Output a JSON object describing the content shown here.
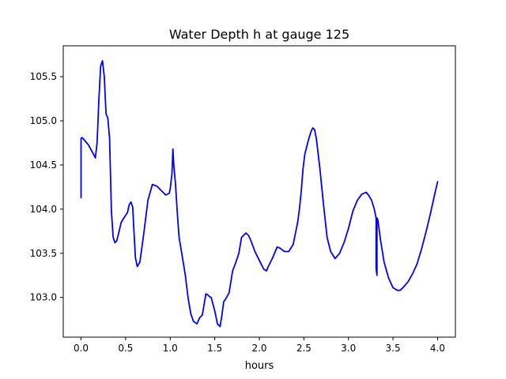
{
  "chart_data": {
    "type": "line",
    "title": "Water Depth h at gauge 125",
    "xlabel": "hours",
    "ylabel": "",
    "xlim": [
      -0.2,
      4.2
    ],
    "ylim": [
      102.55,
      105.85
    ],
    "grid": false,
    "xticks": [
      0.0,
      0.5,
      1.0,
      1.5,
      2.0,
      2.5,
      3.0,
      3.5,
      4.0
    ],
    "xtick_labels": [
      "0.0",
      "0.5",
      "1.0",
      "1.5",
      "2.0",
      "2.5",
      "3.0",
      "3.5",
      "4.0"
    ],
    "yticks": [
      103.0,
      103.5,
      104.0,
      104.5,
      105.0,
      105.5
    ],
    "ytick_labels": [
      "103.0",
      "103.5",
      "104.0",
      "104.5",
      "105.0",
      "105.5"
    ],
    "series": [
      {
        "color": "#0000ff",
        "x": [
          0.0,
          0.0,
          0.0,
          0.0,
          0.01,
          0.03,
          0.08,
          0.13,
          0.16,
          0.18,
          0.2,
          0.22,
          0.24,
          0.26,
          0.28,
          0.3,
          0.32,
          0.34,
          0.36,
          0.38,
          0.4,
          0.42,
          0.45,
          0.48,
          0.52,
          0.54,
          0.56,
          0.58,
          0.59,
          0.61,
          0.63,
          0.66,
          0.7,
          0.75,
          0.8,
          0.85,
          0.9,
          0.95,
          0.99,
          1.0,
          1.02,
          1.03,
          1.04,
          1.06,
          1.08,
          1.1,
          1.13,
          1.17,
          1.2,
          1.23,
          1.26,
          1.3,
          1.33,
          1.36,
          1.4,
          1.42,
          1.44,
          1.46,
          1.5,
          1.53,
          1.56,
          1.58,
          1.6,
          1.62,
          1.66,
          1.7,
          1.73,
          1.77,
          1.8,
          1.85,
          1.88,
          1.91,
          1.95,
          2.0,
          2.05,
          2.08,
          2.1,
          2.15,
          2.2,
          2.23,
          2.28,
          2.33,
          2.38,
          2.43,
          2.45,
          2.47,
          2.49,
          2.51,
          2.55,
          2.58,
          2.6,
          2.62,
          2.64,
          2.68,
          2.72,
          2.76,
          2.8,
          2.85,
          2.9,
          2.95,
          3.0,
          3.05,
          3.1,
          3.15,
          3.2,
          3.23,
          3.26,
          3.29,
          3.31,
          3.31,
          3.32,
          3.32,
          3.33,
          3.36,
          3.4,
          3.45,
          3.5,
          3.55,
          3.58,
          3.62,
          3.67,
          3.72,
          3.77,
          3.82,
          3.87,
          3.92,
          3.97,
          4.0
        ],
        "y": [
          104.53,
          104.13,
          104.8,
          104.8,
          104.81,
          104.79,
          104.73,
          104.64,
          104.58,
          104.75,
          105.25,
          105.62,
          105.68,
          105.5,
          105.08,
          105.03,
          104.8,
          103.98,
          103.68,
          103.62,
          103.64,
          103.72,
          103.85,
          103.9,
          103.96,
          104.05,
          104.08,
          104.02,
          103.8,
          103.45,
          103.35,
          103.4,
          103.7,
          104.1,
          104.28,
          104.26,
          104.21,
          104.16,
          104.18,
          104.23,
          104.4,
          104.68,
          104.5,
          104.28,
          103.95,
          103.68,
          103.5,
          103.25,
          103.0,
          102.82,
          102.73,
          102.7,
          102.77,
          102.8,
          103.04,
          103.03,
          103.01,
          103.0,
          102.85,
          102.7,
          102.67,
          102.8,
          102.95,
          102.98,
          103.05,
          103.3,
          103.38,
          103.5,
          103.68,
          103.73,
          103.7,
          103.63,
          103.52,
          103.42,
          103.32,
          103.3,
          103.35,
          103.45,
          103.57,
          103.56,
          103.52,
          103.52,
          103.6,
          103.85,
          104.0,
          104.2,
          104.45,
          104.62,
          104.78,
          104.88,
          104.92,
          104.9,
          104.8,
          104.45,
          104.05,
          103.68,
          103.52,
          103.44,
          103.5,
          103.62,
          103.78,
          103.98,
          104.1,
          104.17,
          104.19,
          104.15,
          104.1,
          104.0,
          103.9,
          103.33,
          103.25,
          103.9,
          103.88,
          103.65,
          103.4,
          103.22,
          103.11,
          103.08,
          103.08,
          103.12,
          103.18,
          103.27,
          103.38,
          103.55,
          103.74,
          103.95,
          104.18,
          104.31
        ]
      }
    ]
  }
}
